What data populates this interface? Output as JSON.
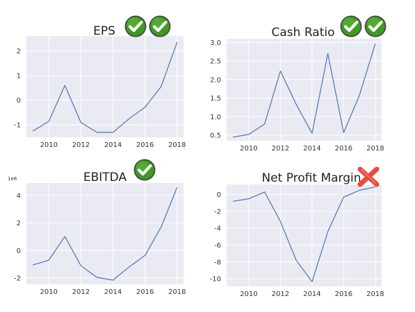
{
  "chart_data": [
    {
      "type": "line",
      "title": "EPS",
      "status": "check",
      "status_count": 2,
      "x": [
        2009,
        2010,
        2011,
        2012,
        2013,
        2014,
        2015,
        2016,
        2017,
        2018
      ],
      "y": [
        -1.25,
        -0.85,
        0.6,
        -0.9,
        -1.3,
        -1.3,
        -0.75,
        -0.28,
        0.55,
        2.35
      ],
      "xticks": [
        2010,
        2012,
        2014,
        2016,
        2018
      ],
      "yticks": [
        -1,
        0,
        1,
        2
      ],
      "xlim": [
        2008.6,
        2018.4
      ],
      "ylim": [
        -1.5,
        2.6
      ],
      "line_color": "#4c72b0",
      "background": "#eaeaf2",
      "grid": true
    },
    {
      "type": "line",
      "title": "Cash Ratio",
      "status": "check",
      "status_count": 2,
      "x": [
        2009,
        2010,
        2011,
        2012,
        2013,
        2014,
        2015,
        2016,
        2017,
        2018
      ],
      "y": [
        0.45,
        0.52,
        0.8,
        2.23,
        1.33,
        0.55,
        2.7,
        0.57,
        1.58,
        2.97
      ],
      "xticks": [
        2010,
        2012,
        2014,
        2016,
        2018
      ],
      "yticks": [
        0.5,
        1.0,
        1.5,
        2.0,
        2.5,
        3.0
      ],
      "ytick_labels": [
        "0.5",
        "1.0",
        "1.5",
        "2.0",
        "2.5",
        "3.0"
      ],
      "xlim": [
        2008.6,
        2018.4
      ],
      "ylim": [
        0.35,
        3.1
      ],
      "line_color": "#4c72b0",
      "background": "#eaeaf2",
      "grid": true
    },
    {
      "type": "line",
      "title": "EBITDA",
      "status": "check",
      "status_count": 1,
      "y_multiplier": "1e8",
      "x": [
        2009,
        2010,
        2011,
        2012,
        2013,
        2014,
        2015,
        2016,
        2017,
        2018
      ],
      "y": [
        -1.05,
        -0.7,
        1.02,
        -1.1,
        -1.95,
        -2.15,
        -1.2,
        -0.35,
        1.7,
        4.6
      ],
      "xticks": [
        2010,
        2012,
        2014,
        2016,
        2018
      ],
      "yticks": [
        -2,
        0,
        2,
        4
      ],
      "xlim": [
        2008.6,
        2018.4
      ],
      "ylim": [
        -2.45,
        4.9
      ],
      "line_color": "#4c72b0",
      "background": "#eaeaf2",
      "grid": true
    },
    {
      "type": "line",
      "title": "Net Profit Margin",
      "status": "cross",
      "status_count": 1,
      "x": [
        2009,
        2010,
        2011,
        2012,
        2013,
        2014,
        2015,
        2016,
        2017,
        2018
      ],
      "y": [
        -0.8,
        -0.5,
        0.3,
        -3.2,
        -7.8,
        -10.35,
        -4.4,
        -0.3,
        0.5,
        0.9
      ],
      "xticks": [
        2010,
        2012,
        2014,
        2016,
        2018
      ],
      "yticks": [
        -10,
        -8,
        -6,
        -4,
        -2,
        0
      ],
      "xlim": [
        2008.6,
        2018.4
      ],
      "ylim": [
        -10.9,
        1.2
      ],
      "line_color": "#4c72b0",
      "background": "#eaeaf2",
      "grid": true
    }
  ]
}
